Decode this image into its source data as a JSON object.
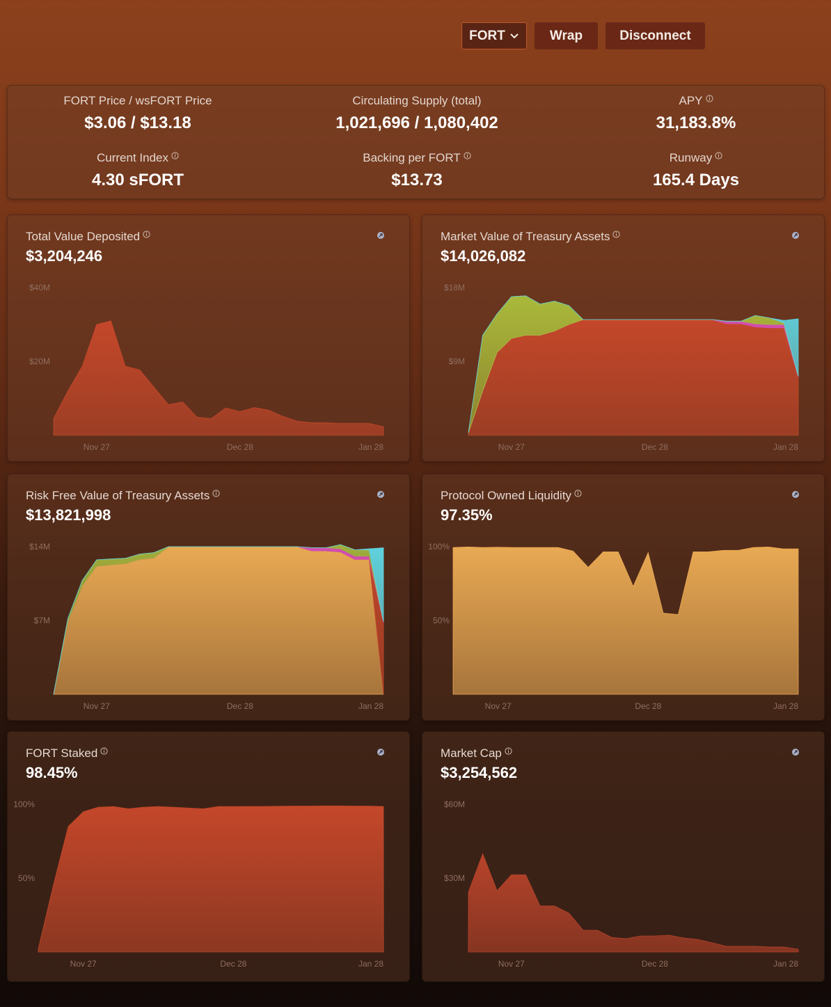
{
  "header": {
    "buttons": [
      "FORT",
      "Wrap",
      "Disconnect"
    ]
  },
  "stats": [
    {
      "label": "FORT Price / wsFORT Price",
      "value": "$3.06 / $13.18"
    },
    {
      "label": "Circulating Supply (total)",
      "value": "1,021,696 / 1,080,402"
    },
    {
      "label": "APY",
      "value": "31,183.8%"
    },
    {
      "label": "Current Index",
      "value": "4.30 sFORT"
    },
    {
      "label": "Backing per FORT",
      "value": "$13.73"
    },
    {
      "label": "Runway",
      "value": "165.4 Days"
    }
  ],
  "chart_data": [
    {
      "type": "area",
      "title": "Total Value Deposited",
      "subtitle": "$3,204,246",
      "categories": [
        null,
        null,
        null,
        "Nov 27",
        null,
        null,
        null,
        null,
        null,
        null,
        null,
        null,
        null,
        "Dec 28",
        null,
        null,
        null,
        null,
        null,
        null,
        null,
        null,
        null,
        "Jan 28"
      ],
      "series": [
        {
          "color": "#c4472a",
          "values": [
            4500000,
            12000000,
            18700000,
            30000000,
            31000000,
            18700000,
            17700000,
            13000000,
            8300000,
            9000000,
            4900000,
            4500000,
            7400000,
            6400000,
            7500000,
            6800000,
            5100000,
            3800000,
            3400000,
            3400000,
            3200000,
            3200000,
            3200000,
            2300000
          ]
        }
      ],
      "ylim": [
        0,
        40000000
      ],
      "yticks": [
        {
          "value": 20000000,
          "label": "$20M"
        },
        {
          "value": 40000000,
          "label": "$40M"
        }
      ]
    },
    {
      "type": "stacked-area",
      "title": "Market Value of Treasury Assets",
      "subtitle": "$14,026,082",
      "categories": [
        null,
        null,
        null,
        "Nov 27",
        null,
        null,
        null,
        null,
        null,
        null,
        null,
        null,
        null,
        "Dec 28",
        null,
        null,
        null,
        null,
        null,
        null,
        null,
        null,
        null,
        "Jan 28"
      ],
      "series": [
        {
          "color": "#c4472a",
          "values": [
            300000,
            5400000,
            10100000,
            11800000,
            12200000,
            12200000,
            12700000,
            13500000,
            14100000,
            14100000,
            14100000,
            14100000,
            14100000,
            14100000,
            14100000,
            14100000,
            14100000,
            14100000,
            13600000,
            13600000,
            13200000,
            13100000,
            13100000,
            7100000
          ]
        },
        {
          "color": "#d24fb0",
          "values": [
            0,
            0,
            0,
            0,
            0,
            0,
            0,
            0,
            0,
            0,
            0,
            0,
            0,
            0,
            0,
            0,
            0,
            0,
            300000,
            300000,
            400000,
            400000,
            400000,
            100000
          ]
        },
        {
          "color": "#a9b93a",
          "values": [
            0,
            6800000,
            4700000,
            5100000,
            4800000,
            3800000,
            3650000,
            2300000,
            0,
            0,
            0,
            0,
            0,
            0,
            0,
            0,
            0,
            0,
            0,
            0,
            1000000,
            800000,
            200000,
            0
          ]
        },
        {
          "color": "#5fd3df",
          "values": [
            0,
            0,
            0,
            0,
            0,
            0,
            0,
            0,
            0,
            0,
            0,
            0,
            0,
            0,
            0,
            0,
            0,
            0,
            0,
            0,
            0,
            0,
            300000,
            7000000
          ]
        }
      ],
      "ylim": [
        0,
        18000000
      ],
      "yticks": [
        {
          "value": 9000000,
          "label": "$9M"
        },
        {
          "value": 18000000,
          "label": "$18M"
        }
      ]
    },
    {
      "type": "stacked-area",
      "title": "Risk Free Value of Treasury Assets",
      "subtitle": "$13,821,998",
      "categories": [
        null,
        null,
        null,
        "Nov 27",
        null,
        null,
        null,
        null,
        null,
        null,
        null,
        null,
        null,
        "Dec 28",
        null,
        null,
        null,
        null,
        null,
        null,
        null,
        null,
        null,
        "Jan 28"
      ],
      "series": [
        {
          "color": "#e8a953",
          "values": [
            0,
            6900000,
            10300000,
            12150000,
            12280000,
            12400000,
            12800000,
            12940000,
            14000000,
            14000000,
            14000000,
            14000000,
            14000000,
            14000000,
            14000000,
            14000000,
            14000000,
            14000000,
            13600000,
            13600000,
            13500000,
            12800000,
            12800000,
            0
          ]
        },
        {
          "color": "#c4472a",
          "values": [
            0,
            0,
            0,
            0,
            0,
            0,
            0,
            0,
            0,
            0,
            0,
            0,
            0,
            0,
            0,
            0,
            0,
            0,
            0,
            0,
            0,
            0,
            0,
            6800000
          ]
        },
        {
          "color": "#d24fb0",
          "values": [
            0,
            0,
            0,
            0,
            0,
            0,
            0,
            0,
            0,
            0,
            0,
            0,
            0,
            0,
            0,
            0,
            0,
            0,
            300000,
            300000,
            300000,
            300000,
            300000,
            100000
          ]
        },
        {
          "color": "#9fae3c",
          "values": [
            0,
            300000,
            500000,
            600000,
            550000,
            500000,
            500000,
            500000,
            0,
            0,
            0,
            0,
            0,
            0,
            0,
            0,
            0,
            0,
            0,
            0,
            400000,
            600000,
            600000,
            0
          ]
        },
        {
          "color": "#5fd3df",
          "values": [
            0,
            0,
            0,
            0,
            0,
            0,
            0,
            0,
            0,
            0,
            0,
            0,
            0,
            0,
            0,
            0,
            0,
            0,
            0,
            0,
            0,
            0,
            100000,
            7000000
          ]
        }
      ],
      "ylim": [
        0,
        14000000
      ],
      "yticks": [
        {
          "value": 7000000,
          "label": "$7M"
        },
        {
          "value": 14000000,
          "label": "$14M"
        }
      ]
    },
    {
      "type": "area",
      "title": "Protocol Owned Liquidity",
      "subtitle": "97.35%",
      "categories": [
        null,
        null,
        null,
        "Nov 27",
        null,
        null,
        null,
        null,
        null,
        null,
        null,
        null,
        null,
        "Dec 28",
        null,
        null,
        null,
        null,
        null,
        null,
        null,
        null,
        null,
        "Jan 28"
      ],
      "series": [
        {
          "color": "#e8a953",
          "values": [
            99.5,
            99.8,
            99.5,
            99.6,
            99.5,
            99.5,
            99.5,
            99.5,
            97,
            86,
            96.5,
            96.5,
            73,
            96,
            55,
            54,
            96.5,
            96.5,
            97.5,
            97.5,
            99.5,
            99.8,
            98.5,
            98.5
          ]
        }
      ],
      "ylim": [
        0,
        100
      ],
      "yticks": [
        {
          "value": 50,
          "label": "50%"
        },
        {
          "value": 100,
          "label": "100%"
        }
      ]
    },
    {
      "type": "area",
      "title": "FORT Staked",
      "subtitle": "98.45%",
      "categories": [
        null,
        null,
        null,
        "Nov 27",
        null,
        null,
        null,
        null,
        null,
        null,
        null,
        null,
        null,
        "Dec 28",
        null,
        null,
        null,
        null,
        null,
        null,
        null,
        null,
        null,
        "Jan 28"
      ],
      "series": [
        {
          "color": "#c4472a",
          "values": [
            2,
            45,
            85,
            95,
            98,
            98.5,
            97,
            98,
            98.5,
            98,
            97.5,
            97,
            98.5,
            98.5,
            98.6,
            98.6,
            98.7,
            98.8,
            98.8,
            98.9,
            98.9,
            98.8,
            98.8,
            98.6
          ]
        }
      ],
      "ylim": [
        0,
        100
      ],
      "yticks": [
        {
          "value": 50,
          "label": "50%"
        },
        {
          "value": 100,
          "label": "100%"
        }
      ]
    },
    {
      "type": "area",
      "title": "Market Cap",
      "subtitle": "$3,254,562",
      "categories": [
        null,
        null,
        null,
        "Nov 27",
        null,
        null,
        null,
        null,
        null,
        null,
        null,
        null,
        null,
        "Dec 28",
        null,
        null,
        null,
        null,
        null,
        null,
        null,
        null,
        null,
        "Jan 28"
      ],
      "series": [
        {
          "color": "#b8432a",
          "values": [
            24300000,
            39900000,
            24900000,
            31400000,
            31400000,
            18700000,
            18700000,
            15800000,
            8800000,
            8800000,
            5900000,
            5400000,
            6500000,
            6500000,
            6800000,
            5700000,
            5100000,
            3700000,
            2300000,
            2300000,
            2300000,
            2000000,
            2000000,
            1100000
          ]
        }
      ],
      "ylim": [
        0,
        60000000
      ],
      "yticks": [
        {
          "value": 30000000,
          "label": "$30M"
        },
        {
          "value": 60000000,
          "label": "$60M"
        }
      ]
    }
  ]
}
